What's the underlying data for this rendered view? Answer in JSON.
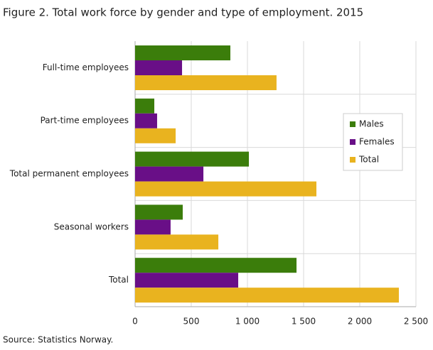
{
  "chart_data": {
    "type": "hbar",
    "title": "Figure 2. Total work force  by gender and type of employment. 2015",
    "source": "Source: Statistics Norway.",
    "categories": [
      "Full-time employees",
      "Part-time employees",
      "Total permanent employees",
      "Seasonal workers",
      "Total"
    ],
    "series": [
      {
        "name": "Males",
        "color": "#3b7d0b",
        "values": [
          848,
          171,
          1013,
          424,
          1437
        ]
      },
      {
        "name": "Females",
        "color": "#690f87",
        "values": [
          418,
          196,
          608,
          316,
          918
        ]
      },
      {
        "name": "Total",
        "color": "#e9b31f",
        "values": [
          1259,
          361,
          1614,
          741,
          2348
        ]
      }
    ],
    "xlim": [
      0,
      2500
    ],
    "xticks": [
      0,
      500,
      {
        "value": 1000,
        "label": "1 000"
      },
      {
        "value": 1500,
        "label": "1 500"
      },
      {
        "value": 2000,
        "label": "2 000"
      },
      {
        "value": 2500,
        "label": "2 500"
      }
    ],
    "grid": true,
    "legend": "right"
  }
}
